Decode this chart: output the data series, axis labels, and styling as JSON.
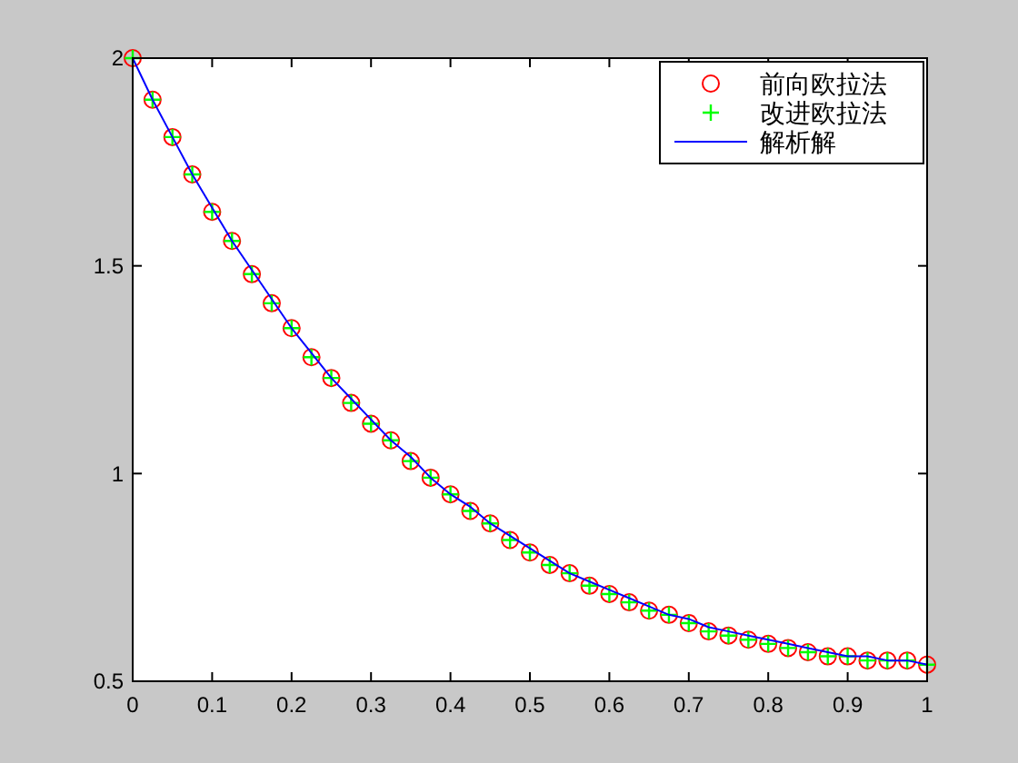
{
  "chart_data": {
    "type": "line",
    "x": [
      0,
      0.025,
      0.05,
      0.075,
      0.1,
      0.125,
      0.15,
      0.175,
      0.2,
      0.225,
      0.25,
      0.275,
      0.3,
      0.325,
      0.35,
      0.375,
      0.4,
      0.425,
      0.45,
      0.475,
      0.5,
      0.525,
      0.55,
      0.575,
      0.6,
      0.625,
      0.65,
      0.675,
      0.7,
      0.725,
      0.75,
      0.775,
      0.8,
      0.825,
      0.85,
      0.875,
      0.9,
      0.925,
      0.95,
      0.975,
      1
    ],
    "series": [
      {
        "name": "前向欧拉法",
        "type": "scatter",
        "marker": "circle",
        "color": "#ff0000",
        "values": [
          2.0,
          1.9,
          1.81,
          1.72,
          1.63,
          1.56,
          1.48,
          1.41,
          1.35,
          1.28,
          1.23,
          1.17,
          1.12,
          1.08,
          1.03,
          0.99,
          0.95,
          0.91,
          0.88,
          0.84,
          0.81,
          0.78,
          0.76,
          0.73,
          0.71,
          0.69,
          0.67,
          0.66,
          0.64,
          0.62,
          0.61,
          0.6,
          0.59,
          0.58,
          0.57,
          0.56,
          0.56,
          0.55,
          0.55,
          0.55,
          0.54
        ]
      },
      {
        "name": "改进欧拉法",
        "type": "scatter",
        "marker": "cross",
        "color": "#00ff00",
        "values": [
          2.0,
          1.9,
          1.81,
          1.72,
          1.63,
          1.56,
          1.48,
          1.41,
          1.35,
          1.28,
          1.23,
          1.17,
          1.12,
          1.08,
          1.03,
          0.99,
          0.95,
          0.91,
          0.88,
          0.84,
          0.81,
          0.78,
          0.76,
          0.73,
          0.71,
          0.69,
          0.67,
          0.66,
          0.64,
          0.62,
          0.61,
          0.6,
          0.59,
          0.58,
          0.57,
          0.56,
          0.56,
          0.55,
          0.55,
          0.55,
          0.54
        ]
      },
      {
        "name": "解析解",
        "marker": "none",
        "line_style": "solid",
        "color": "#0000ff",
        "values": [
          2.0,
          1.9,
          1.81,
          1.72,
          1.64,
          1.56,
          1.49,
          1.42,
          1.35,
          1.29,
          1.23,
          1.18,
          1.13,
          1.08,
          1.04,
          0.99,
          0.95,
          0.92,
          0.88,
          0.85,
          0.82,
          0.79,
          0.76,
          0.74,
          0.72,
          0.7,
          0.68,
          0.66,
          0.65,
          0.63,
          0.62,
          0.61,
          0.6,
          0.59,
          0.58,
          0.57,
          0.56,
          0.56,
          0.55,
          0.55,
          0.54
        ]
      }
    ],
    "xlim": [
      0,
      1
    ],
    "xticks": [
      0,
      0.1,
      0.2,
      0.3,
      0.4,
      0.5,
      0.6,
      0.7,
      0.8,
      0.9,
      1
    ],
    "ylim": [
      0.5,
      2
    ],
    "yticks": [
      0.5,
      1,
      1.5,
      2
    ],
    "grid": false,
    "legend": "top right"
  }
}
